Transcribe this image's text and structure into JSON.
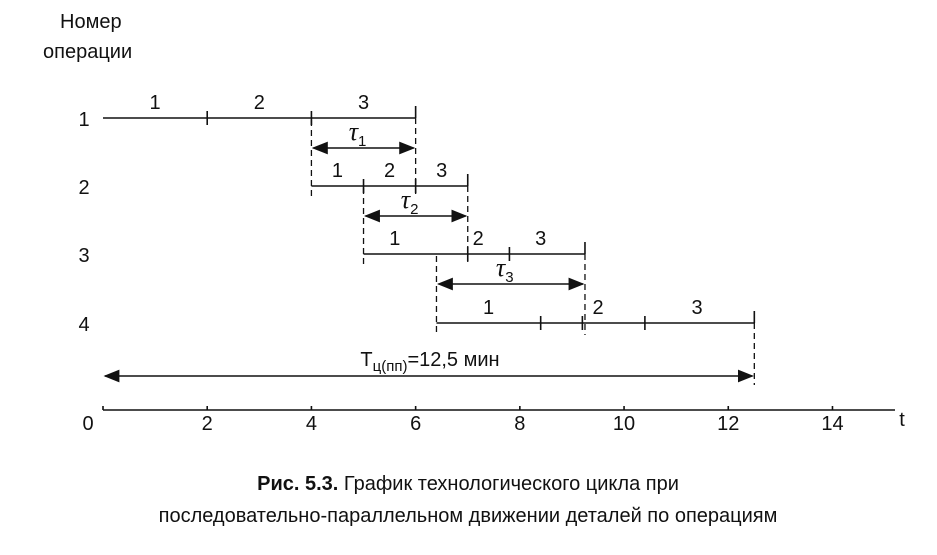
{
  "chart_data": {
    "type": "gantt",
    "y_title": [
      "Номер",
      "операции"
    ],
    "x_label": "t",
    "xlim": [
      0,
      15.2
    ],
    "xticks": [
      {
        "value": 0,
        "label": "0"
      },
      2,
      4,
      6,
      8,
      10,
      12,
      14
    ],
    "operations": [
      {
        "label": "1",
        "start": 0,
        "end": 6,
        "ticks": [
          2,
          4
        ],
        "parts": [
          {
            "label": "1",
            "x": 1
          },
          {
            "label": "2",
            "x": 3
          },
          {
            "label": "3",
            "x": 5
          }
        ]
      },
      {
        "label": "2",
        "start": 4,
        "end": 7,
        "ticks": [
          5,
          6
        ],
        "parts": [
          {
            "label": "1",
            "x": 4.5
          },
          {
            "label": "2",
            "x": 5.5
          },
          {
            "label": "3",
            "x": 6.5
          }
        ]
      },
      {
        "label": "3",
        "start": 5,
        "end": 9.25,
        "ticks": [
          7,
          7.8
        ],
        "parts": [
          {
            "label": "1",
            "x": 5.6
          },
          {
            "label": "2",
            "x": 7.2
          },
          {
            "label": "3",
            "x": 8.4
          }
        ]
      },
      {
        "label": "4",
        "start": 6.4,
        "end": 12.5,
        "ticks": [
          8.4,
          9.2,
          10.4
        ],
        "parts": [
          {
            "label": "1",
            "x": 7.4
          },
          {
            "label": "2",
            "x": 9.5
          },
          {
            "label": "3",
            "x": 11.4
          }
        ]
      }
    ],
    "intervals": [
      {
        "symbol": "τ",
        "sub": "1",
        "from": 4,
        "to": 6
      },
      {
        "symbol": "τ",
        "sub": "2",
        "from": 5,
        "to": 7
      },
      {
        "symbol": "τ",
        "sub": "3",
        "from": 6.4,
        "to": 9.25
      }
    ],
    "total": {
      "main": "T",
      "sub": "ц(пп)",
      "rest": "=12,5 мин",
      "from": 0,
      "to": 12.5
    },
    "caption": {
      "bold": "Рис. 5.3.",
      "line1": " График технологического цикла при",
      "line2": "последовательно-параллельном движении деталей по операциям"
    }
  }
}
